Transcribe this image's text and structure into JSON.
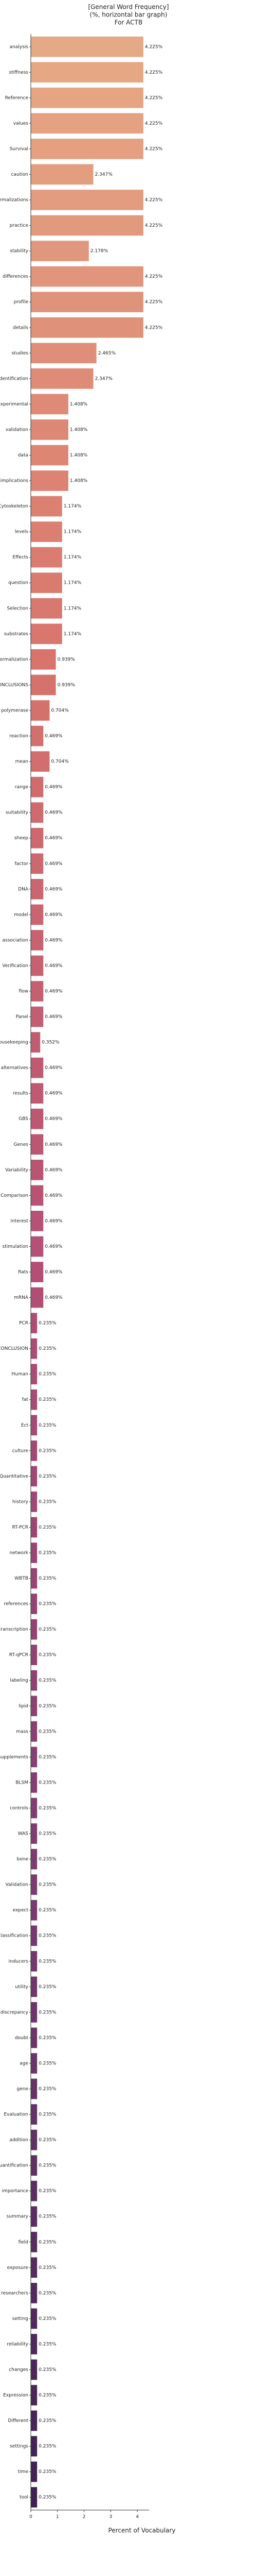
{
  "chart_data": {
    "type": "barh",
    "title": [
      "[General Word Frequency]",
      "(%, horizontal bar graph)",
      "For ACTB"
    ],
    "xlabel": "Percent of Vocabulary",
    "categories": [
      "analysis",
      "stiffness",
      "Reference",
      "values",
      "Survival",
      "caution",
      "normalizations",
      "practice",
      "stability",
      "differences",
      "profile",
      "details",
      "studies",
      "identification",
      "Experimental",
      "validation",
      "data",
      "implications",
      "Cytoskeleton",
      "levels",
      "Effects",
      "question",
      "Selection",
      "substrates",
      "normalization",
      "CONCLUSIONS",
      "polymerase",
      "reaction",
      "mean",
      "range",
      "suitability",
      "sheep",
      "factor",
      "DNA",
      "model",
      "association",
      "Verification",
      "flow",
      "Panel",
      "Housekeeping",
      "alternatives",
      "results",
      "GBS",
      "Genes",
      "Variability",
      "Comparison",
      "interest",
      "stimulation",
      "Rats",
      "mRNA",
      "PCR",
      "CONCLUSION",
      "Human",
      "fat",
      "Ect",
      "culture",
      "Quantitative",
      "history",
      "RT-PCR",
      "network",
      "WBTB",
      "references",
      "transcription",
      "RT-qPCR",
      "labeling",
      "lipid",
      "mass",
      "supplements",
      "BLSM",
      "controls",
      "WAS",
      "bone",
      "Validation",
      "expect",
      "classification",
      "inducers",
      "utility",
      "discrepancy",
      "doubt",
      "age",
      "gene",
      "Evaluation",
      "addition",
      "quantification",
      "importance",
      "summary",
      "field",
      "exposure",
      "researchers",
      "setting",
      "reliability",
      "changes",
      "Expression",
      "Different",
      "settings",
      "time",
      "tool"
    ],
    "values": [
      4.225,
      4.225,
      4.225,
      4.225,
      4.225,
      2.347,
      4.225,
      4.225,
      2.178,
      4.225,
      4.225,
      4.225,
      2.465,
      2.347,
      1.408,
      1.408,
      1.408,
      1.408,
      1.174,
      1.174,
      1.174,
      1.174,
      1.174,
      1.174,
      0.939,
      0.939,
      0.704,
      0.469,
      0.704,
      0.469,
      0.469,
      0.469,
      0.469,
      0.469,
      0.469,
      0.469,
      0.469,
      0.469,
      0.469,
      0.352,
      0.469,
      0.469,
      0.469,
      0.469,
      0.469,
      0.469,
      0.469,
      0.469,
      0.469,
      0.469,
      0.235,
      0.235,
      0.235,
      0.235,
      0.235,
      0.235,
      0.235,
      0.235,
      0.235,
      0.235,
      0.235,
      0.235,
      0.235,
      0.235,
      0.235,
      0.235,
      0.235,
      0.235,
      0.235,
      0.235,
      0.235,
      0.235,
      0.235,
      0.235,
      0.235,
      0.235,
      0.235,
      0.235,
      0.235,
      0.235,
      0.235,
      0.235,
      0.235,
      0.235,
      0.235,
      0.235,
      0.235,
      0.235,
      0.235,
      0.235,
      0.235,
      0.235,
      0.235,
      0.235,
      0.235,
      0.235,
      0.235
    ],
    "value_labels": [
      "4.225%",
      "4.225%",
      "4.225%",
      "4.225%",
      "4.225%",
      "2.347%",
      "4.225%",
      "4.225%",
      "2.178%",
      "4.225%",
      "4.225%",
      "4.225%",
      "2.465%",
      "2.347%",
      "1.408%",
      "1.408%",
      "1.408%",
      "1.408%",
      "1.174%",
      "1.174%",
      "1.174%",
      "1.174%",
      "1.174%",
      "1.174%",
      "0.939%",
      "0.939%",
      "0.704%",
      "0.469%",
      "0.704%",
      "0.469%",
      "0.469%",
      "0.469%",
      "0.469%",
      "0.469%",
      "0.469%",
      "0.469%",
      "0.469%",
      "0.469%",
      "0.469%",
      "0.352%",
      "0.469%",
      "0.469%",
      "0.469%",
      "0.469%",
      "0.469%",
      "0.469%",
      "0.469%",
      "0.469%",
      "0.469%",
      "0.469%",
      "0.235%",
      "0.235%",
      "0.235%",
      "0.235%",
      "0.235%",
      "0.235%",
      "0.235%",
      "0.235%",
      "0.235%",
      "0.235%",
      "0.235%",
      "0.235%",
      "0.235%",
      "0.235%",
      "0.235%",
      "0.235%",
      "0.235%",
      "0.235%",
      "0.235%",
      "0.235%",
      "0.235%",
      "0.235%",
      "0.235%",
      "0.235%",
      "0.235%",
      "0.235%",
      "0.235%",
      "0.235%",
      "0.235%",
      "0.235%",
      "0.235%",
      "0.235%",
      "0.235%",
      "0.235%",
      "0.235%",
      "0.235%",
      "0.235%",
      "0.235%",
      "0.235%",
      "0.235%",
      "0.235%",
      "0.235%",
      "0.235%",
      "0.235%",
      "0.235%",
      "0.235%",
      "0.235%"
    ],
    "palette": [
      "#e6a985",
      "#d8746c",
      "#b34f74",
      "#7a3b70",
      "#3e2352"
    ],
    "xlim": [
      0,
      4.44
    ],
    "xticks": [
      0,
      1,
      2,
      3,
      4
    ],
    "grid": false
  }
}
